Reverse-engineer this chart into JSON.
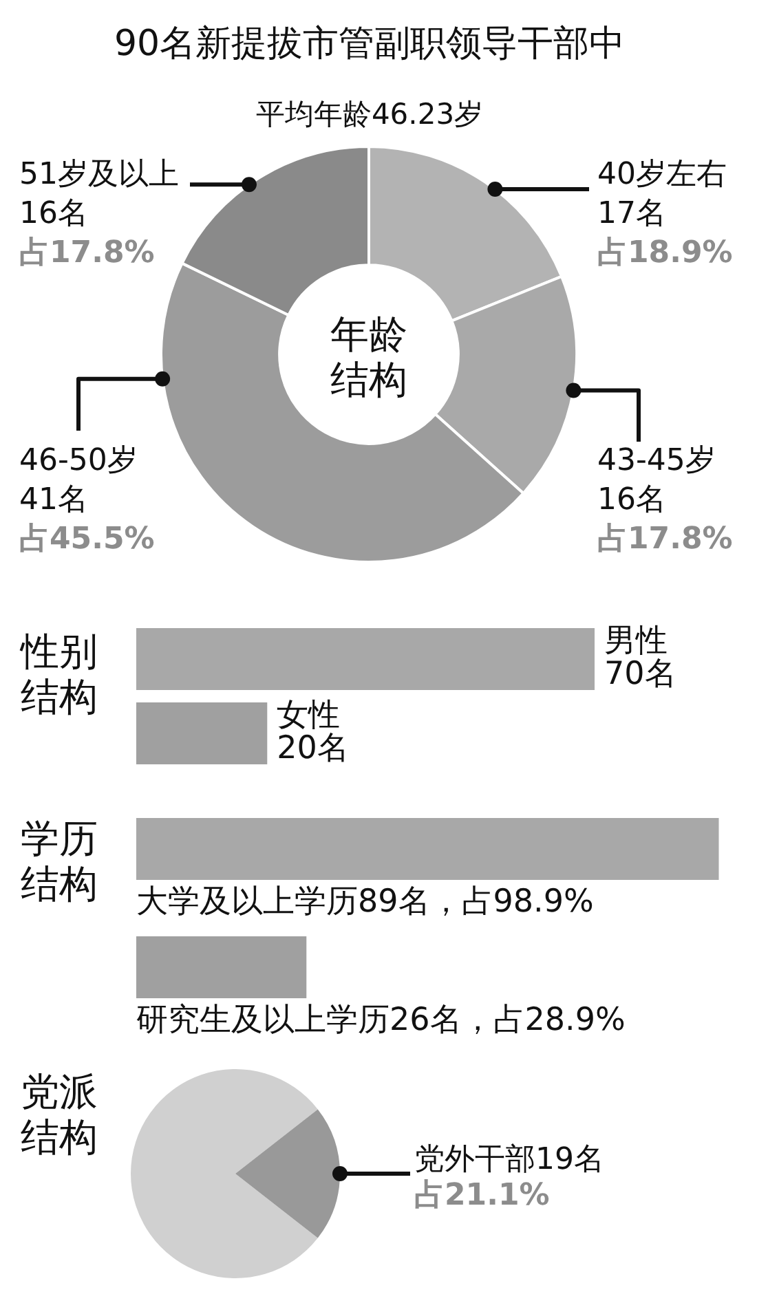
{
  "chart_data": [
    {
      "type": "donut",
      "title": "90名新提拔市管副职领导干部中",
      "subtitle": "平均年龄46.23岁",
      "categories": [
        "40岁左右",
        "43-45岁",
        "46-50岁",
        "51岁及以上"
      ],
      "values": [
        17,
        16,
        41,
        16
      ],
      "colors": [
        "#b3b3b3",
        "#a9a9a9",
        "#9c9c9c",
        "#8a8a8a"
      ],
      "value_labels": [
        "17名",
        "16名",
        "41名",
        "16名"
      ],
      "annotations": [
        "年龄结构",
        {
          "text": "占18.9%",
          "x": "40岁左右"
        },
        {
          "text": "占17.8%",
          "x": "43-45岁"
        },
        {
          "text": "占45.5%",
          "x": "46-50岁"
        },
        {
          "text": "占17.8%",
          "x": "51岁及以上"
        }
      ]
    },
    {
      "type": "bar",
      "orientation": "horizontal",
      "title": "性别结构",
      "categories": [
        "男性",
        "女性"
      ],
      "values": [
        70,
        20
      ],
      "colors": [
        "#a8a8a8",
        "#a0a0a0"
      ],
      "value_labels": [
        "70名",
        "20名"
      ],
      "tick_labels": false
    },
    {
      "type": "bar",
      "orientation": "horizontal",
      "title": "学历结构",
      "categories": [
        "大学及以上学历",
        "研究生及以上学历"
      ],
      "values": [
        89,
        26
      ],
      "colors": [
        "#a8a8a8",
        "#a0a0a0"
      ],
      "value_labels": [
        "89名，占98.9%",
        "26名，占28.9%"
      ],
      "tick_labels": false
    },
    {
      "type": "pie",
      "title": "党派结构",
      "categories": [
        null,
        "党外干部"
      ],
      "values": [
        71,
        19
      ],
      "colors": [
        "#d0d0d0",
        "#999999"
      ],
      "value_labels": [
        null,
        "19名"
      ],
      "annotations": [
        {
          "text": "占21.1%",
          "x": "党外干部"
        }
      ]
    }
  ]
}
